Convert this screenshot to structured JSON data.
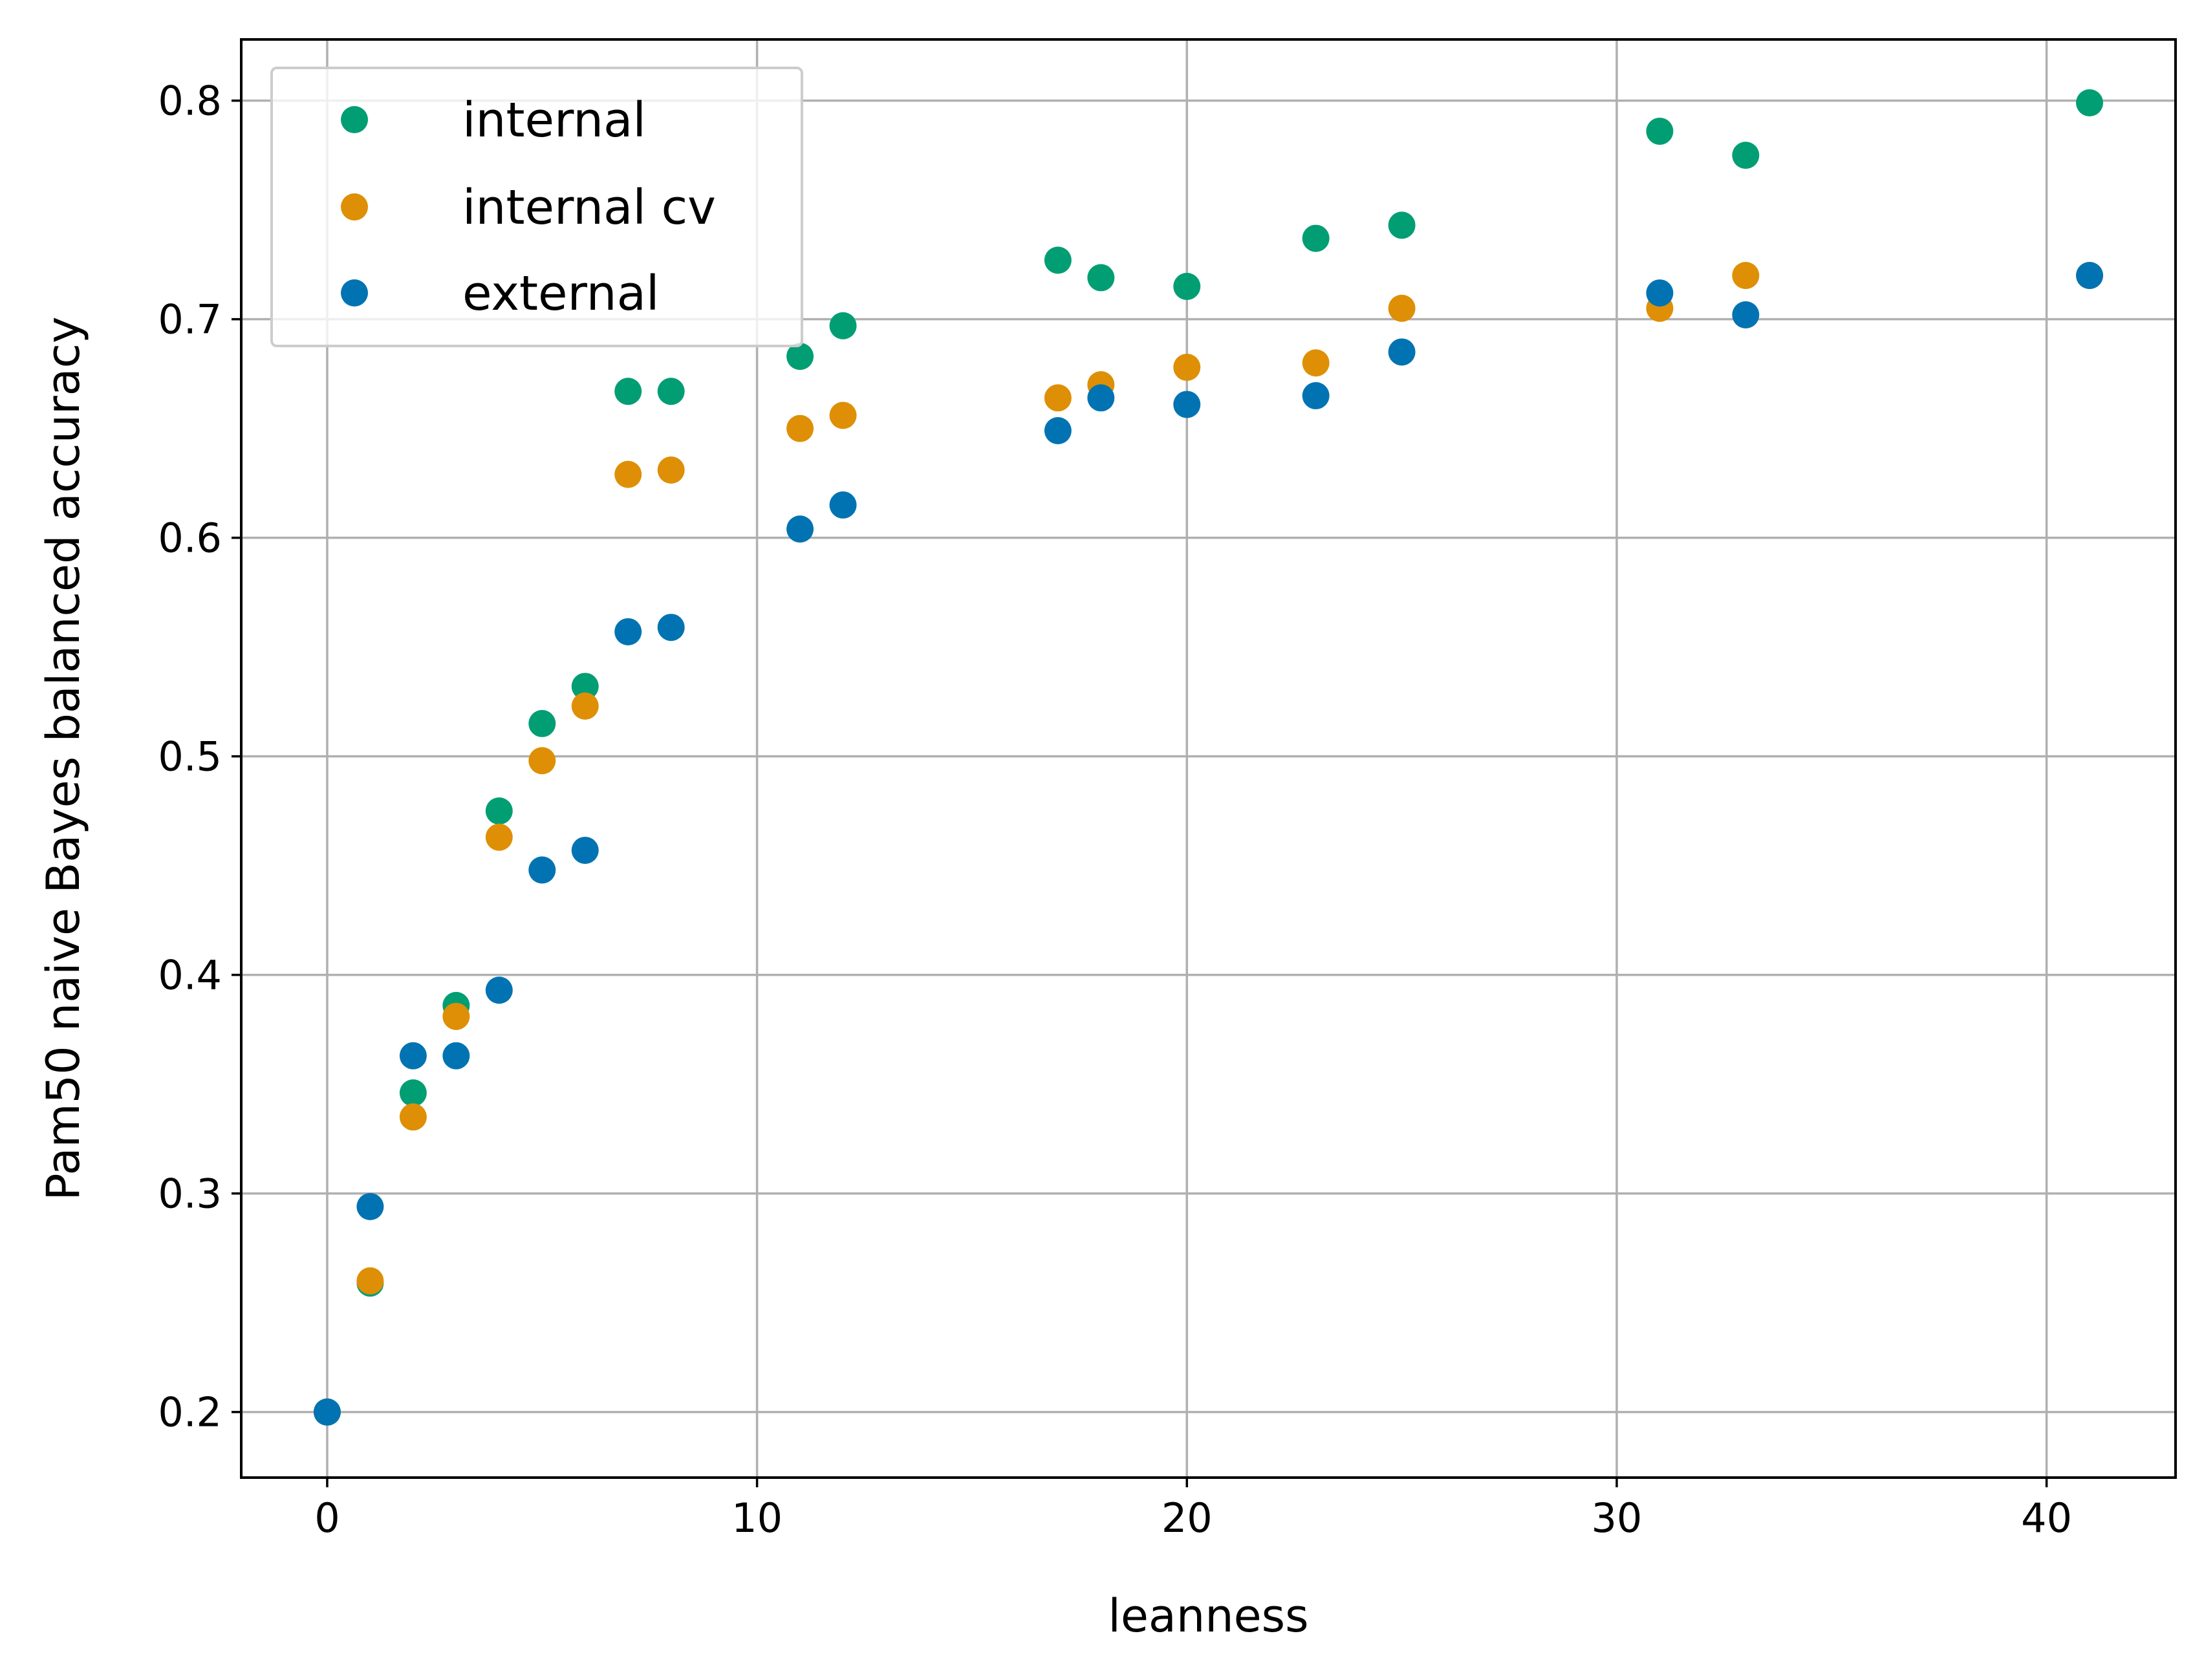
{
  "chart_data": {
    "type": "scatter",
    "xlabel": "leanness",
    "ylabel": "Pam50 naive Bayes balanced accuracy",
    "xlim": [
      -2.0,
      43.0
    ],
    "ylim": [
      0.17,
      0.828
    ],
    "xticks": [
      0,
      10,
      20,
      30,
      40
    ],
    "xtick_labels": [
      "0",
      "10",
      "20",
      "30",
      "40"
    ],
    "yticks": [
      0.2,
      0.3,
      0.4,
      0.5,
      0.6,
      0.7,
      0.8
    ],
    "ytick_labels": [
      "0.2",
      "0.3",
      "0.4",
      "0.5",
      "0.6",
      "0.7",
      "0.8"
    ],
    "grid": true,
    "legend_position": "top-left",
    "series": [
      {
        "name": "internal",
        "color": "#029e73",
        "x": [
          0,
          1,
          2,
          3,
          4,
          5,
          6,
          7,
          8,
          11,
          12,
          17,
          18,
          20,
          23,
          25,
          31,
          33,
          41
        ],
        "y": [
          0.2,
          0.259,
          0.346,
          0.386,
          0.475,
          0.515,
          0.532,
          0.667,
          0.667,
          0.683,
          0.697,
          0.727,
          0.719,
          0.715,
          0.737,
          0.743,
          0.786,
          0.775,
          0.799
        ]
      },
      {
        "name": "internal cv",
        "color": "#de8f05",
        "x": [
          0,
          1,
          2,
          3,
          4,
          5,
          6,
          7,
          8,
          11,
          12,
          17,
          18,
          20,
          23,
          25,
          31,
          33,
          41
        ],
        "y": [
          0.2,
          0.26,
          0.335,
          0.381,
          0.463,
          0.498,
          0.523,
          0.629,
          0.631,
          0.65,
          0.656,
          0.664,
          0.67,
          0.678,
          0.68,
          0.705,
          0.705,
          0.72,
          0.72
        ]
      },
      {
        "name": "external",
        "color": "#0173b2",
        "x": [
          0,
          1,
          2,
          3,
          4,
          5,
          6,
          7,
          8,
          11,
          12,
          17,
          18,
          20,
          23,
          25,
          31,
          33,
          41
        ],
        "y": [
          0.2,
          0.294,
          0.363,
          0.363,
          0.393,
          0.448,
          0.457,
          0.557,
          0.559,
          0.604,
          0.615,
          0.649,
          0.664,
          0.661,
          0.665,
          0.685,
          0.712,
          0.702,
          0.72
        ]
      }
    ]
  }
}
